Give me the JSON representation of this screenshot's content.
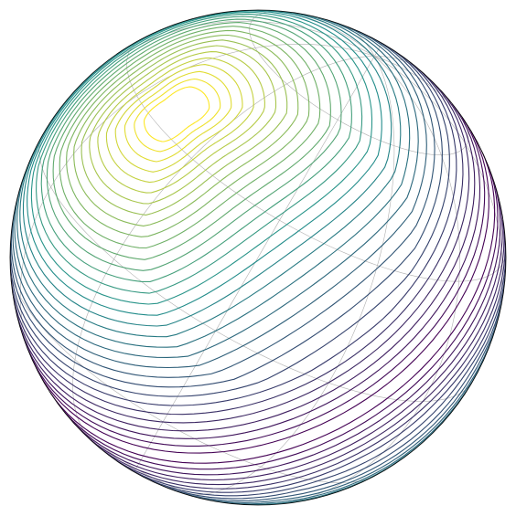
{
  "chart_data": {
    "type": "contour",
    "projection": "orthographic",
    "title": "",
    "xlabel": "",
    "ylabel": "",
    "colormap": "viridis",
    "colors": {
      "low": "#440154",
      "mid": "#21918c",
      "high": "#fde725",
      "graticule": "#b0b0b0",
      "outline": "#000000"
    },
    "graticule": {
      "shown": true,
      "meridian_step_deg": 30,
      "parallel_step_deg": 30
    },
    "view": {
      "center_lon_deg": 0,
      "center_lat_deg": 20,
      "tilt_deg": -30
    },
    "field": {
      "description": "",
      "lobes": [
        {
          "name": "",
          "lon_deg": -45,
          "lat_deg": 35,
          "sign": 1
        },
        {
          "name": "",
          "lon_deg": 135,
          "lat_deg": -35,
          "sign": -1
        }
      ],
      "level_count": 32
    }
  }
}
